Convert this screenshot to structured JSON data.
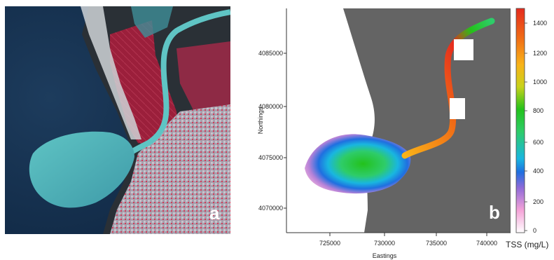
{
  "panel_a": {
    "label": "a",
    "description_colors": {
      "sea": "#16314f",
      "plume": "#47b0b4",
      "vegetation": "#9d1f3a",
      "urban": "#b9b3bf"
    }
  },
  "panel_b": {
    "label": "b",
    "y_axis_title": "Northings",
    "x_axis_title": "Eastings",
    "y_ticks": [
      "4085000",
      "4080000",
      "4075000",
      "4070000"
    ],
    "x_ticks": [
      "725000",
      "730000",
      "735000",
      "740000"
    ],
    "colorbar": {
      "ticks": [
        "1400",
        "1200",
        "1000",
        "800",
        "600",
        "400",
        "200",
        "0"
      ],
      "title": "TSS (mg/L)",
      "colors": [
        "#ffffff",
        "#f5a3d8",
        "#7060d0",
        "#1f6fe0",
        "#19b6e0",
        "#2ecc6a",
        "#23c21b",
        "#c8d21b",
        "#f9b319",
        "#f06b16",
        "#e52b1e"
      ]
    },
    "land_color": "#646464"
  }
}
